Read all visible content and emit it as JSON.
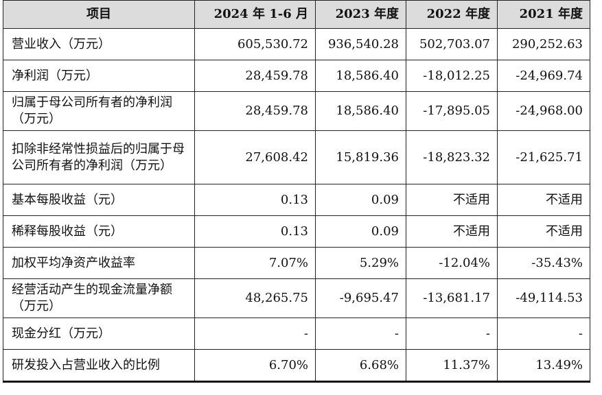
{
  "table": {
    "headers": [
      "项目",
      "2024 年 1-6 月",
      "2023 年度",
      "2022 年度",
      "2021 年度"
    ],
    "rows": [
      {
        "label": "营业收入（万元）",
        "values": [
          "605,530.72",
          "936,540.28",
          "502,703.07",
          "290,252.63"
        ]
      },
      {
        "label": "净利润（万元）",
        "values": [
          "28,459.78",
          "18,586.40",
          "-18,012.25",
          "-24,969.74"
        ]
      },
      {
        "label": "归属于母公司所有者的净利润（万元）",
        "values": [
          "28,459.78",
          "18,586.40",
          "-17,895.05",
          "-24,968.00"
        ]
      },
      {
        "label": "扣除非经常性损益后的归属于母公司所有者的净利润（万元）",
        "values": [
          "27,608.42",
          "15,819.36",
          "-18,823.32",
          "-21,625.71"
        ]
      },
      {
        "label": "基本每股收益（元）",
        "values": [
          "0.13",
          "0.09",
          "不适用",
          "不适用"
        ]
      },
      {
        "label": "稀释每股收益（元）",
        "values": [
          "0.13",
          "0.09",
          "不适用",
          "不适用"
        ]
      },
      {
        "label": "加权平均净资产收益率",
        "values": [
          "7.07%",
          "5.29%",
          "-12.04%",
          "-35.43%"
        ]
      },
      {
        "label": "经营活动产生的现金流量净额（万元）",
        "values": [
          "48,265.75",
          "-9,695.47",
          "-13,681.17",
          "-49,114.53"
        ]
      },
      {
        "label": "现金分红（万元）",
        "values": [
          "-",
          "-",
          "-",
          "-"
        ]
      },
      {
        "label": "研发投入占营业收入的比例",
        "values": [
          "6.70%",
          "6.68%",
          "11.37%",
          "13.49%"
        ]
      }
    ]
  }
}
